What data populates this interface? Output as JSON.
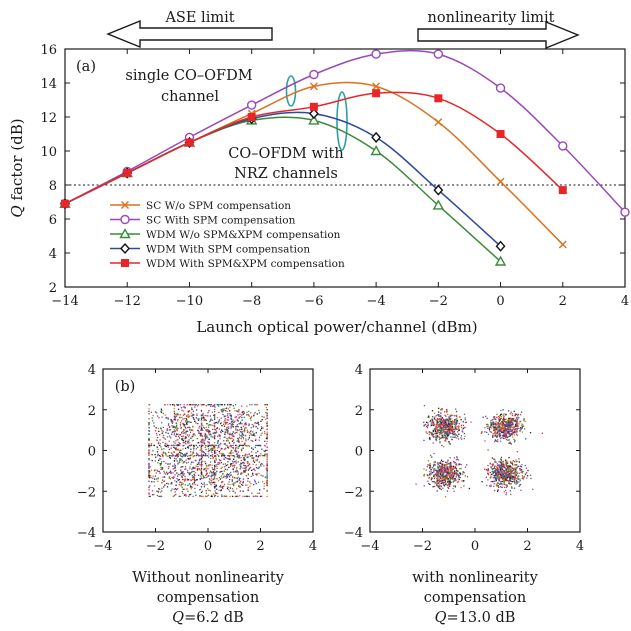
{
  "chart_data": [
    {
      "type": "line",
      "panel_label": "(a)",
      "xlabel": "Launch optical power/channel (dBm)",
      "ylabel": "Q factor (dB)",
      "ylabel_italic": "Q",
      "ylabel_rest": " factor (dB)",
      "xlim": [
        -14,
        4
      ],
      "ylim": [
        2,
        16
      ],
      "xticks": [
        -14,
        -12,
        -10,
        -8,
        -6,
        -4,
        -2,
        0,
        2,
        4
      ],
      "yticks": [
        2,
        4,
        6,
        8,
        10,
        12,
        14,
        16
      ],
      "xtick_labels": [
        "−14",
        "−12",
        "−10",
        "−8",
        "−6",
        "−4",
        "−2",
        "0",
        "2",
        "4"
      ],
      "ytick_labels": [
        "2",
        "4",
        "6",
        "8",
        "10",
        "12",
        "14",
        "16"
      ],
      "threshold_line": 8,
      "arrows": {
        "left": "ASE limit",
        "right": "nonlinearity limit"
      },
      "annotations": [
        "single CO–OFDM",
        "channel",
        "CO–OFDM with",
        "NRZ channels"
      ],
      "legend_position": "bottom-left",
      "series": [
        {
          "name": "SC W/o SPM compensation",
          "marker": "x",
          "color": "#d9731f",
          "x": [
            -14,
            -12,
            -10,
            -8,
            -6,
            -4,
            -2,
            0,
            2
          ],
          "y": [
            6.9,
            8.7,
            10.5,
            12.2,
            13.8,
            13.8,
            11.7,
            8.2,
            4.5
          ]
        },
        {
          "name": "SC With SPM compensation",
          "marker": "circle",
          "color": "#9a48b8",
          "x": [
            -14,
            -12,
            -10,
            -8,
            -6,
            -4,
            -2,
            0,
            2,
            4
          ],
          "y": [
            6.9,
            8.8,
            10.8,
            12.7,
            14.5,
            15.7,
            15.7,
            13.7,
            10.3,
            6.4
          ]
        },
        {
          "name": "WDM W/o SPM&XPM compensation",
          "marker": "triangle",
          "color": "#3a8a3a",
          "x": [
            -14,
            -12,
            -10,
            -8,
            -6,
            -4,
            -2,
            0
          ],
          "y": [
            6.9,
            8.7,
            10.5,
            11.8,
            11.8,
            10.0,
            6.8,
            3.5
          ]
        },
        {
          "name": "WDM With SPM compensation",
          "marker": "diamond",
          "color": "#2b4aa0",
          "x": [
            -14,
            -12,
            -10,
            -8,
            -6,
            -4,
            -2,
            0
          ],
          "y": [
            6.9,
            8.7,
            10.5,
            11.9,
            12.2,
            10.8,
            7.7,
            4.4
          ]
        },
        {
          "name": "WDM With SPM&XPM compensation",
          "marker": "square",
          "color": "#e8262a",
          "x": [
            -14,
            -12,
            -10,
            -8,
            -6,
            -4,
            -2,
            0,
            2
          ],
          "y": [
            6.9,
            8.7,
            10.5,
            12.0,
            12.6,
            13.4,
            13.1,
            11.0,
            7.7
          ]
        }
      ]
    },
    {
      "type": "scatter",
      "panel_label": "(b)",
      "xlim": [
        -4,
        4
      ],
      "ylim": [
        -4,
        4
      ],
      "xticks": [
        -4,
        -2,
        0,
        2,
        4
      ],
      "yticks": [
        -4,
        -2,
        0,
        2,
        4
      ],
      "xtick_labels": [
        "−4",
        "−2",
        "0",
        "2",
        "4"
      ],
      "ytick_labels": [
        "−4",
        "−2",
        "0",
        "2",
        "4"
      ],
      "caption_lines": [
        "Without nonlinearity",
        "compensation",
        "Q=6.2 dB"
      ],
      "cluster_centers": [
        [
          -1,
          1
        ],
        [
          1,
          1
        ],
        [
          -1,
          -1
        ],
        [
          1,
          -1
        ]
      ],
      "cluster_spread": 0.8
    },
    {
      "type": "scatter",
      "xlim": [
        -4,
        4
      ],
      "ylim": [
        -4,
        4
      ],
      "xticks": [
        -4,
        -2,
        0,
        2,
        4
      ],
      "yticks": [
        -4,
        -2,
        0,
        2,
        4
      ],
      "xtick_labels": [
        "−4",
        "−2",
        "0",
        "2",
        "4"
      ],
      "ytick_labels": [
        "−4",
        "−2",
        "0",
        "2",
        "4"
      ],
      "caption_lines": [
        "with nonlinearity",
        "compensation",
        "Q=13.0 dB"
      ],
      "cluster_centers": [
        [
          -1.15,
          1.15
        ],
        [
          1.15,
          1.15
        ],
        [
          -1.15,
          -1.15
        ],
        [
          1.15,
          -1.15
        ]
      ],
      "cluster_spread": 0.33
    }
  ],
  "scatter_colors": [
    "#d9731f",
    "#9a48b8",
    "#3a8a3a",
    "#2b4aa0",
    "#e8262a",
    "#222222"
  ]
}
